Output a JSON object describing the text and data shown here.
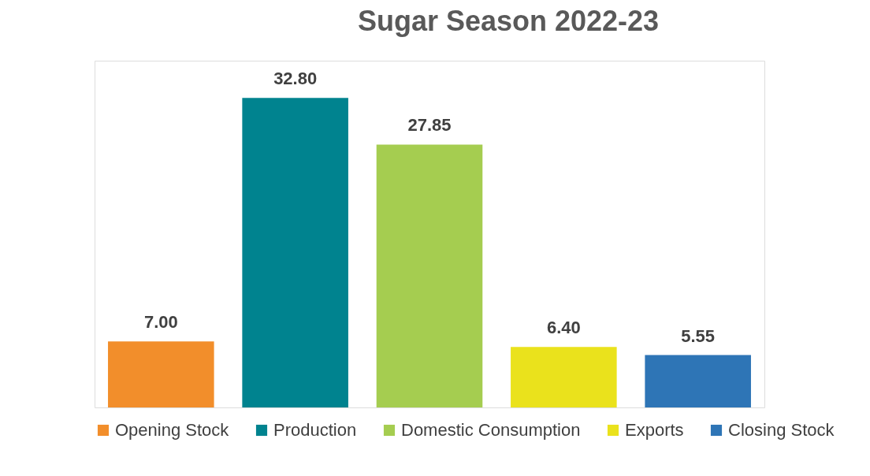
{
  "chart_data": {
    "type": "bar",
    "title": "Sugar Season 2022-23",
    "categories": [
      null
    ],
    "legend": "bottom",
    "grid": false,
    "series": [
      {
        "name": "Opening Stock",
        "color": "#f28e2b",
        "values": [
          7.0
        ],
        "value_labels": [
          "7.00"
        ]
      },
      {
        "name": "Production",
        "color": "#00838f",
        "values": [
          32.8
        ],
        "value_labels": [
          "32.80"
        ]
      },
      {
        "name": "Domestic Consumption",
        "color": "#a5cd50",
        "values": [
          27.85
        ],
        "value_labels": [
          "27.85"
        ]
      },
      {
        "name": "Exports",
        "color": "#eae21c",
        "values": [
          6.4
        ],
        "value_labels": [
          "6.40"
        ]
      },
      {
        "name": "Closing Stock",
        "color": "#2e75b6",
        "values": [
          5.55
        ],
        "value_labels": [
          "5.55"
        ]
      }
    ]
  }
}
